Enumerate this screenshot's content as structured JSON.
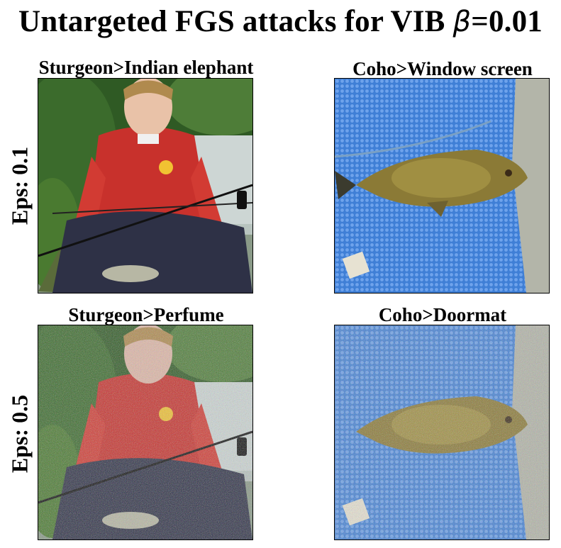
{
  "figure": {
    "title_prefix": "Untargeted FGS attacks for VIB ",
    "title_symbol": "β",
    "title_suffix": "=0.01"
  },
  "rows": [
    {
      "label": "Eps: 0.1"
    },
    {
      "label": "Eps: 0.5"
    }
  ],
  "panels": [
    {
      "title": "Sturgeon>Indian elephant",
      "image": "boy-with-fish"
    },
    {
      "title": "Coho>Window screen",
      "image": "fish-in-net"
    },
    {
      "title": "Sturgeon>Perfume",
      "image": "boy-with-fish-noisy"
    },
    {
      "title": "Coho>Doormat",
      "image": "fish-in-net-noisy"
    }
  ]
}
